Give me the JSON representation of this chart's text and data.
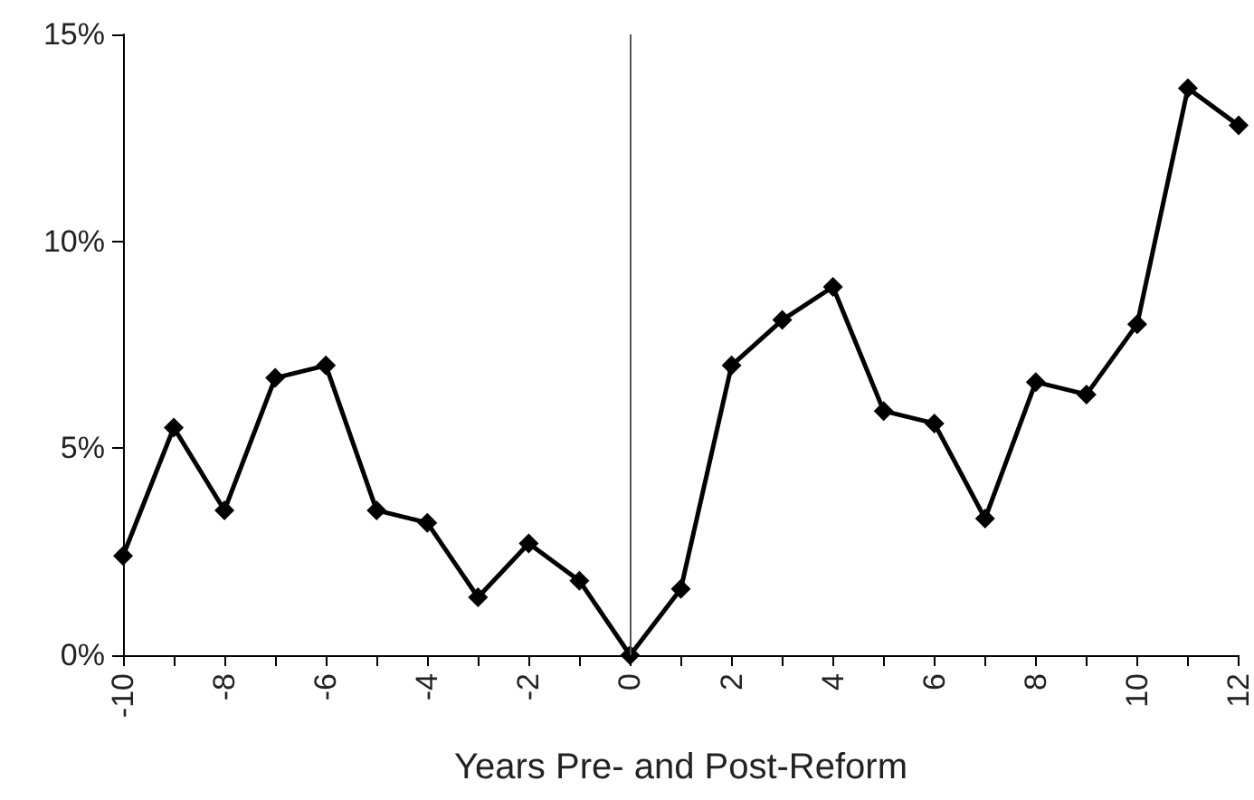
{
  "chart_data": {
    "type": "line",
    "xlabel": "Years Pre- and Post-Reform",
    "x": [
      -10,
      -9,
      -8,
      -7,
      -6,
      -5,
      -4,
      -3,
      -2,
      -1,
      0,
      1,
      2,
      3,
      4,
      5,
      6,
      7,
      8,
      9,
      10,
      11,
      12
    ],
    "series": [
      {
        "color": "#000000",
        "values": [
          2.4,
          5.5,
          3.5,
          6.7,
          7.0,
          3.5,
          3.2,
          1.4,
          2.7,
          1.8,
          0,
          1.6,
          7.0,
          8.1,
          8.9,
          5.9,
          5.6,
          3.3,
          6.6,
          6.3,
          8.0,
          13.7,
          12.8
        ]
      }
    ],
    "xlim": [
      -10,
      12
    ],
    "xticks": [
      -10,
      {
        "value": -9,
        "label": null
      },
      -8,
      {
        "value": -7,
        "label": null
      },
      -6,
      {
        "value": -5,
        "label": null
      },
      -4,
      {
        "value": -3,
        "label": null
      },
      -2,
      {
        "value": -1,
        "label": null
      },
      0,
      {
        "value": 1,
        "label": null
      },
      2,
      {
        "value": 3,
        "label": null
      },
      4,
      {
        "value": 5,
        "label": null
      },
      6,
      {
        "value": 7,
        "label": null
      },
      8,
      {
        "value": 9,
        "label": null
      },
      10,
      {
        "value": 11,
        "label": null
      },
      12
    ],
    "ylim": [
      0,
      15
    ],
    "yticks": [
      {
        "value": 0,
        "label": "0%"
      },
      {
        "value": 5,
        "label": "5%"
      },
      {
        "value": 10,
        "label": "10%"
      },
      {
        "value": 15,
        "label": "15%"
      }
    ],
    "ref_lines": [
      {
        "axis": "x",
        "value": 0,
        "color": "#555555"
      }
    ],
    "grid": false,
    "marker": "diamond",
    "line_style": "solid"
  }
}
